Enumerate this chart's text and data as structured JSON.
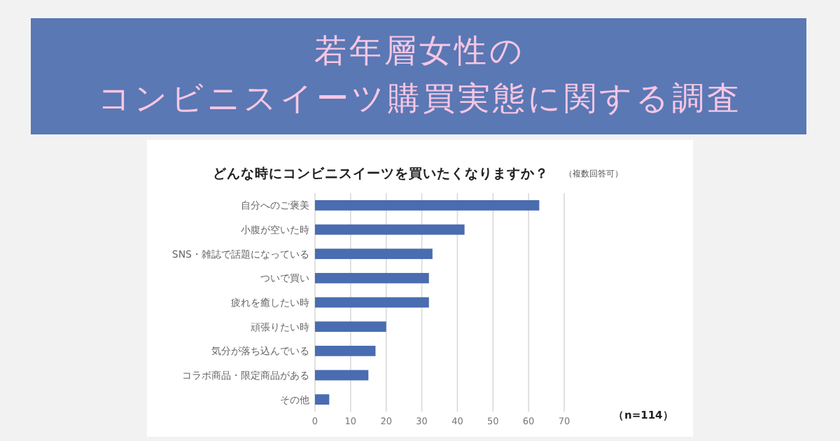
{
  "chart_data": {
    "type": "bar",
    "orientation": "horizontal",
    "title": "若年層女性の",
    "subtitle": "コンビニスイーツ購買実態に関する調査",
    "annotations": [
      "どんな時にコンビニスイーツを買いたくなりますか？",
      "（複数回答可）",
      "（n=114）"
    ],
    "categories": [
      "自分へのご褒美",
      "小腹が空いた時",
      "SNS・雑誌で話題になっている",
      "ついで買い",
      "疲れを癒したい時",
      "頑張りたい時",
      "気分が落ち込んでいる",
      "コラボ商品・限定商品がある",
      "その他"
    ],
    "values": [
      63,
      42,
      33,
      32,
      32,
      20,
      17,
      15,
      4
    ],
    "color": "#4a6cb0",
    "xlim": [
      0,
      70
    ],
    "xticks": [
      0,
      10,
      20,
      30,
      40,
      50,
      60,
      70
    ],
    "grid": "x"
  }
}
